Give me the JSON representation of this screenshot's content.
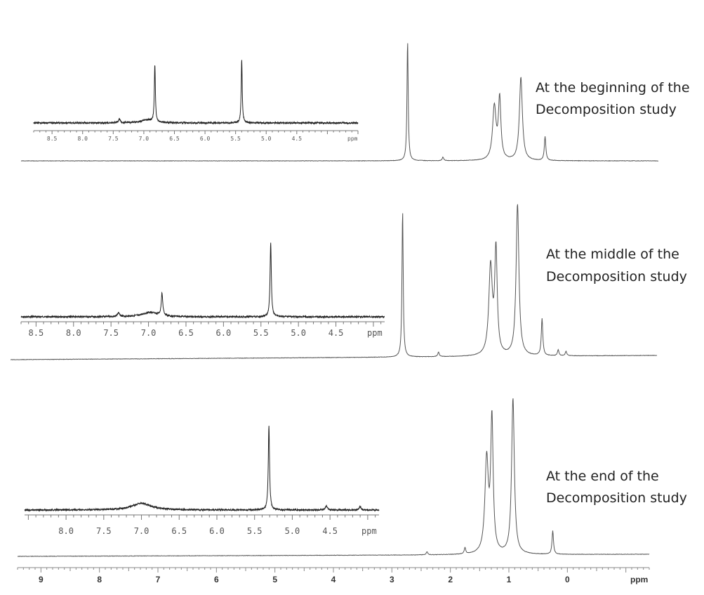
{
  "chart_data": {
    "type": "line",
    "x_unit_label": "ppm",
    "captions": {
      "beginning": [
        "At the beginning of the",
        "Decomposition study"
      ],
      "middle": [
        "At the middle of the",
        "Decomposition study"
      ],
      "end": [
        "At the end of the",
        "Decomposition study"
      ]
    },
    "main_axis": {
      "xlim": [
        9.4,
        -1.4
      ],
      "reversed": true,
      "tick_labels": [
        "9",
        "8",
        "7",
        "6",
        "5",
        "4",
        "3",
        "2",
        "1",
        "0"
      ],
      "unit_label": "ppm"
    },
    "spectra": [
      {
        "id": "beginning",
        "peaks": [
          {
            "ppm": 2.85,
            "height": 1.0,
            "width": 0.012
          },
          {
            "ppm": 1.38,
            "height": 0.44,
            "width": 0.035
          },
          {
            "ppm": 1.29,
            "height": 0.5,
            "width": 0.025
          },
          {
            "ppm": 0.93,
            "height": 0.69,
            "width": 0.03
          },
          {
            "ppm": 0.52,
            "height": 0.2,
            "width": 0.015
          },
          {
            "ppm": 2.25,
            "height": 0.03,
            "width": 0.015
          }
        ],
        "inset": {
          "xlim": [
            8.8,
            3.5
          ],
          "tick_labels": [
            "8.5",
            "8.0",
            "7.5",
            "7.0",
            "6.5",
            "6.0",
            "5.5",
            "5.0",
            "4.5"
          ],
          "unit_label": "ppm",
          "peaks": [
            {
              "ppm": 6.82,
              "height": 1.0,
              "width": 0.01
            },
            {
              "ppm": 5.4,
              "height": 1.1,
              "width": 0.01
            },
            {
              "ppm": 7.4,
              "height": 0.06,
              "width": 0.02
            },
            {
              "ppm": 6.95,
              "height": 0.05,
              "width": 0.12
            }
          ]
        }
      },
      {
        "id": "middle",
        "peaks": [
          {
            "ppm": 2.85,
            "height": 1.0,
            "width": 0.012
          },
          {
            "ppm": 1.38,
            "height": 0.6,
            "width": 0.035
          },
          {
            "ppm": 1.29,
            "height": 0.7,
            "width": 0.025
          },
          {
            "ppm": 0.93,
            "height": 1.03,
            "width": 0.028
          },
          {
            "ppm": 0.52,
            "height": 0.25,
            "width": 0.015
          },
          {
            "ppm": 0.25,
            "height": 0.04,
            "width": 0.015
          },
          {
            "ppm": 0.12,
            "height": 0.03,
            "width": 0.015
          },
          {
            "ppm": 2.25,
            "height": 0.03,
            "width": 0.015
          }
        ],
        "inset": {
          "xlim": [
            8.7,
            3.85
          ],
          "tick_labels": [
            "8.5",
            "8.0",
            "7.5",
            "7.0",
            "6.5",
            "6.0",
            "5.5",
            "5.0",
            "4.5"
          ],
          "unit_label": "ppm",
          "peaks": [
            {
              "ppm": 6.82,
              "height": 0.3,
              "width": 0.012
            },
            {
              "ppm": 5.37,
              "height": 1.0,
              "width": 0.01
            },
            {
              "ppm": 7.4,
              "height": 0.05,
              "width": 0.02
            },
            {
              "ppm": 6.98,
              "height": 0.06,
              "width": 0.12
            }
          ]
        }
      },
      {
        "id": "end",
        "peaks": [
          {
            "ppm": 1.38,
            "height": 0.6,
            "width": 0.035
          },
          {
            "ppm": 1.29,
            "height": 0.85,
            "width": 0.025
          },
          {
            "ppm": 0.93,
            "height": 1.0,
            "width": 0.028
          },
          {
            "ppm": 0.25,
            "height": 0.15,
            "width": 0.015
          },
          {
            "ppm": 1.75,
            "height": 0.04,
            "width": 0.015
          },
          {
            "ppm": 2.4,
            "height": 0.02,
            "width": 0.015
          }
        ],
        "inset": {
          "xlim": [
            8.55,
            3.85
          ],
          "tick_labels": [
            "8.0",
            "7.5",
            "7.0",
            "6.5",
            "6.0",
            "5.5",
            "5.0",
            "4.5"
          ],
          "unit_label": "ppm",
          "peaks": [
            {
              "ppm": 5.31,
              "height": 1.0,
              "width": 0.01
            },
            {
              "ppm": 7.0,
              "height": 0.08,
              "width": 0.15
            },
            {
              "ppm": 4.55,
              "height": 0.05,
              "width": 0.015
            },
            {
              "ppm": 4.1,
              "height": 0.04,
              "width": 0.015
            }
          ]
        }
      }
    ]
  }
}
